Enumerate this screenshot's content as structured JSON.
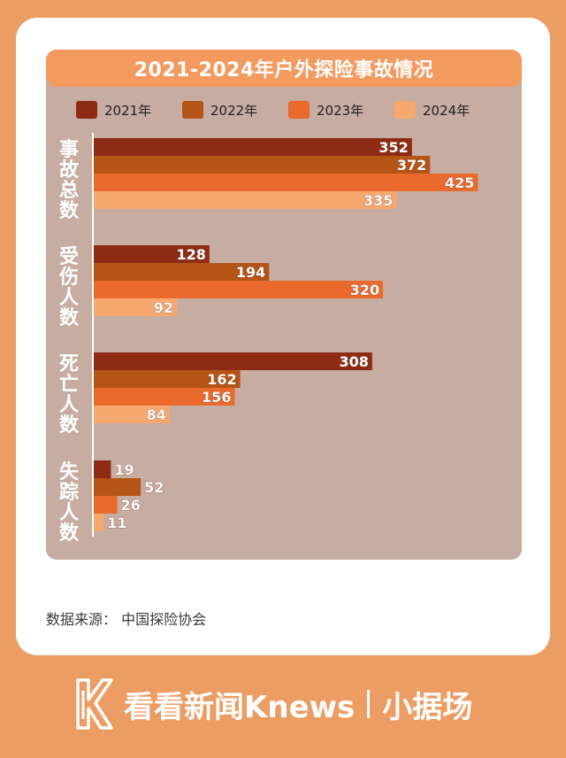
{
  "header": {
    "title": "2021-2024年户外探险事故情况"
  },
  "source": "数据来源： 中国探险协会",
  "footer": {
    "brand": "看看新闻Knews",
    "sub": "小据场"
  },
  "colors": {
    "background": "#ec9d63",
    "panel": "#c7aca1",
    "title_bar": "#f39a5e",
    "series": [
      "#8e2b15",
      "#b45416",
      "#ea6a2e",
      "#f6a86f"
    ]
  },
  "chart_data": {
    "type": "bar",
    "orientation": "horizontal",
    "title": "2021-2024年户外探险事故情况",
    "categories": [
      "事故总数",
      "受伤人数",
      "死亡人数",
      "失踪人数"
    ],
    "series": [
      {
        "name": "2021年",
        "values": [
          352,
          128,
          308,
          19
        ]
      },
      {
        "name": "2022年",
        "values": [
          372,
          194,
          162,
          52
        ]
      },
      {
        "name": "2023年",
        "values": [
          425,
          320,
          156,
          26
        ]
      },
      {
        "name": "2024年",
        "values": [
          335,
          92,
          84,
          11
        ]
      }
    ],
    "xlim": [
      0,
      450
    ],
    "legend": "top",
    "grid": false
  }
}
